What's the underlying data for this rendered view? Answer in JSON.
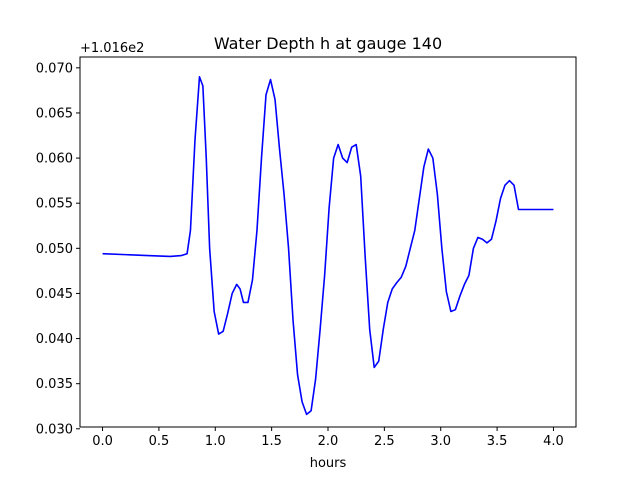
{
  "chart_data": {
    "type": "line",
    "title": "Water Depth h at gauge 140",
    "xlabel": "hours",
    "ylabel": "",
    "y_offset_label": "+1.016e2",
    "xlim": [
      -0.2,
      4.2
    ],
    "ylim": [
      0.0302,
      0.0712
    ],
    "x_ticks": [
      0.0,
      0.5,
      1.0,
      1.5,
      2.0,
      2.5,
      3.0,
      3.5,
      4.0
    ],
    "x_tick_labels": [
      "0.0",
      "0.5",
      "1.0",
      "1.5",
      "2.0",
      "2.5",
      "3.0",
      "3.5",
      "4.0"
    ],
    "y_ticks": [
      0.03,
      0.035,
      0.04,
      0.045,
      0.05,
      0.055,
      0.06,
      0.065,
      0.07
    ],
    "y_tick_labels": [
      "0.030",
      "0.035",
      "0.040",
      "0.045",
      "0.050",
      "0.055",
      "0.060",
      "0.065",
      "0.070"
    ],
    "grid": false,
    "series": [
      {
        "color": "#0000ff",
        "x": [
          0.0,
          0.2,
          0.4,
          0.6,
          0.7,
          0.75,
          0.78,
          0.82,
          0.86,
          0.89,
          0.92,
          0.95,
          0.99,
          1.03,
          1.07,
          1.11,
          1.15,
          1.19,
          1.22,
          1.25,
          1.29,
          1.33,
          1.37,
          1.41,
          1.45,
          1.49,
          1.53,
          1.57,
          1.61,
          1.65,
          1.69,
          1.73,
          1.77,
          1.81,
          1.85,
          1.89,
          1.93,
          1.97,
          2.01,
          2.05,
          2.09,
          2.13,
          2.17,
          2.21,
          2.25,
          2.29,
          2.33,
          2.37,
          2.41,
          2.45,
          2.49,
          2.53,
          2.57,
          2.61,
          2.65,
          2.69,
          2.73,
          2.77,
          2.81,
          2.85,
          2.89,
          2.93,
          2.97,
          3.01,
          3.05,
          3.09,
          3.13,
          3.17,
          3.21,
          3.25,
          3.29,
          3.33,
          3.37,
          3.41,
          3.45,
          3.49,
          3.53,
          3.57,
          3.61,
          3.65,
          3.69,
          3.73,
          3.77,
          3.81,
          3.85,
          3.89,
          3.93,
          3.97,
          4.0
        ],
        "y": [
          0.0494,
          0.0493,
          0.0492,
          0.0491,
          0.0492,
          0.0494,
          0.052,
          0.062,
          0.069,
          0.068,
          0.06,
          0.05,
          0.043,
          0.0405,
          0.0408,
          0.0428,
          0.045,
          0.046,
          0.0455,
          0.044,
          0.044,
          0.0465,
          0.052,
          0.06,
          0.067,
          0.0687,
          0.0665,
          0.061,
          0.056,
          0.05,
          0.042,
          0.036,
          0.033,
          0.0316,
          0.032,
          0.0355,
          0.041,
          0.047,
          0.0545,
          0.06,
          0.0615,
          0.06,
          0.0595,
          0.0612,
          0.0615,
          0.058,
          0.049,
          0.041,
          0.0368,
          0.0375,
          0.041,
          0.044,
          0.0455,
          0.0462,
          0.0468,
          0.048,
          0.05,
          0.052,
          0.0555,
          0.059,
          0.061,
          0.06,
          0.056,
          0.05,
          0.0452,
          0.043,
          0.0432,
          0.0447,
          0.046,
          0.047,
          0.05,
          0.0512,
          0.051,
          0.0506,
          0.051,
          0.053,
          0.0555,
          0.057,
          0.0575,
          0.057,
          0.0543,
          0.0543,
          0.0543,
          0.0543,
          0.0543,
          0.0543,
          0.0543,
          0.0543,
          0.0543
        ]
      }
    ]
  }
}
